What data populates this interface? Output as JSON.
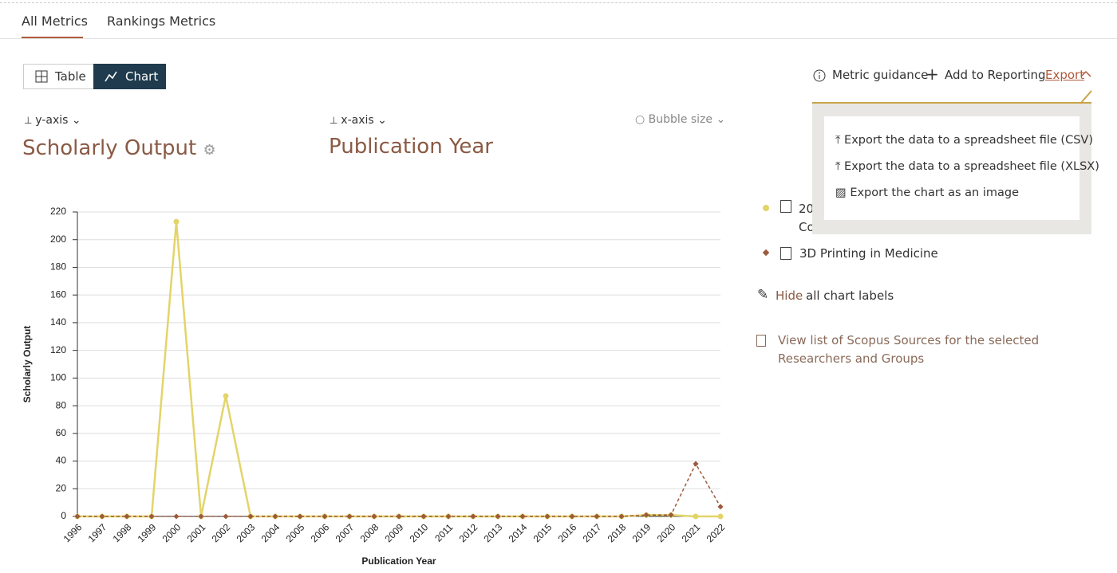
{
  "tabs": [
    "All Metrics",
    "Rankings Metrics"
  ],
  "view_toggle": [
    "Table",
    "Chart"
  ],
  "toolbar": [
    "Metric guidance",
    "Add to Reporting",
    "Export"
  ],
  "export_menu": [
    "Export the data to a spreadsheet file (CSV)",
    "Export the data to a spreadsheet file (XLSX)",
    "Export the chart as an image"
  ],
  "y_selector": {
    "label": "y-axis",
    "value": "Scholarly Output"
  },
  "x_selector": {
    "label": "x-axis",
    "value": "Publication Year"
  },
  "bubble_selector": "Bubble size",
  "labels_toggle": {
    "action": "Hide",
    "text": "all chart labels"
  },
  "sources_link": "View list of Scopus Sources for the selected Researchers and Groups",
  "chart_data": {
    "type": "line",
    "categories": [
      "1996",
      "1997",
      "1998",
      "1999",
      "2000",
      "2001",
      "2002",
      "2003",
      "2004",
      "2005",
      "2006",
      "2007",
      "2008",
      "2009",
      "2010",
      "2011",
      "2012",
      "2013",
      "2014",
      "2015",
      "2016",
      "2017",
      "2018",
      "2019",
      "2020",
      "2021",
      "2022"
    ],
    "series": [
      {
        "name": "20 Co",
        "color": "#e3d46a",
        "values": [
          0,
          0,
          0,
          0,
          213,
          0,
          87,
          0,
          0,
          0,
          0,
          0,
          0,
          0,
          0,
          0,
          0,
          0,
          0,
          0,
          0,
          0,
          0,
          1,
          1,
          0,
          0
        ]
      },
      {
        "name": "3D Printing in Medicine",
        "color": "#9c5a3c",
        "values": [
          0,
          0,
          0,
          0,
          0,
          0,
          0,
          0,
          0,
          0,
          0,
          0,
          0,
          0,
          0,
          0,
          0,
          0,
          0,
          0,
          0,
          0,
          0,
          1,
          1,
          38,
          7
        ]
      }
    ],
    "ylim": [
      0,
      220
    ],
    "yticks": [
      0,
      20,
      40,
      60,
      80,
      100,
      120,
      140,
      160,
      180,
      200,
      220
    ],
    "y_label": "Scholarly Output",
    "x_label": "Publication Year",
    "grid": true
  }
}
